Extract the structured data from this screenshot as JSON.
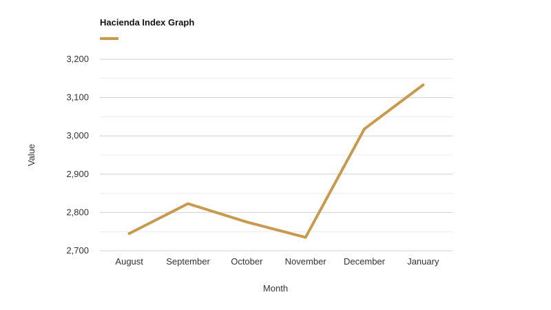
{
  "chart_data": {
    "type": "line",
    "title": "Hacienda Index Graph",
    "xlabel": "Month",
    "ylabel": "Value",
    "categories": [
      "August",
      "September",
      "October",
      "November",
      "December",
      "January"
    ],
    "series": [
      {
        "values": [
          2745,
          2823,
          2775,
          2735,
          3018,
          3133
        ],
        "color": "#c89a4e"
      }
    ],
    "ylim": [
      2700,
      3200
    ],
    "yticks": [
      2700,
      2800,
      2900,
      3000,
      3100,
      3200
    ],
    "ytick_labels": [
      "2,700",
      "2,800",
      "2,900",
      "3,000",
      "3,100",
      "3,200"
    ],
    "grid": true,
    "legend": "top-left"
  },
  "colors": {
    "series": "#c89a4e",
    "grid_major": "#cfcfcf",
    "grid_minor": "#ececec",
    "text": "#333333",
    "title": "#111111"
  }
}
